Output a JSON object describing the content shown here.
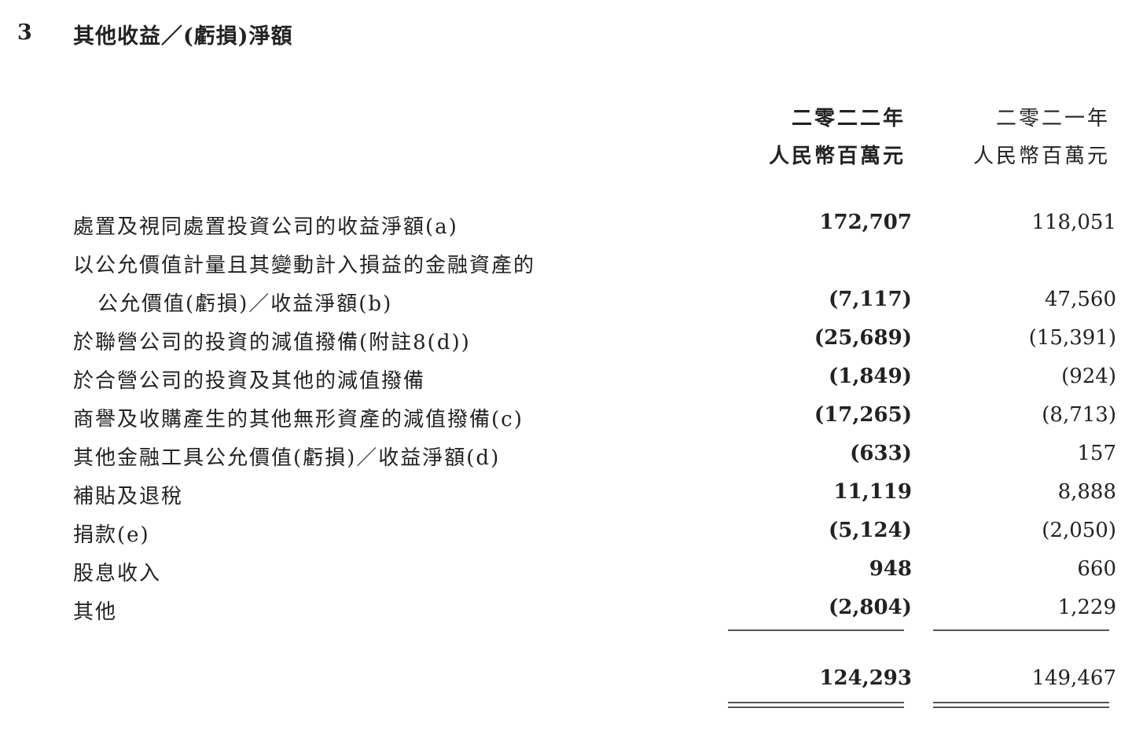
{
  "section": {
    "number": "3",
    "title": "其他收益／(虧損)淨額"
  },
  "columns": [
    {
      "year": "二零二二年",
      "unit": "人民幣百萬元"
    },
    {
      "year": "二零二一年",
      "unit": "人民幣百萬元"
    }
  ],
  "rows": [
    {
      "label": "處置及視同處置投資公司的收益淨額(a)",
      "y2022": "172,707",
      "y2021": "118,051"
    },
    {
      "label": "以公允價值計量且其變動計入損益的金融資產的",
      "y2022": "",
      "y2021": ""
    },
    {
      "label": "公允價值(虧損)／收益淨額(b)",
      "y2022": "(7,117)",
      "y2021": "47,560"
    },
    {
      "label": "於聯營公司的投資的減值撥備(附註8(d))",
      "y2022": "(25,689)",
      "y2021": "(15,391)"
    },
    {
      "label": "於合營公司的投資及其他的減值撥備",
      "y2022": "(1,849)",
      "y2021": "(924)"
    },
    {
      "label": "商譽及收購產生的其他無形資產的減值撥備(c)",
      "y2022": "(17,265)",
      "y2021": "(8,713)"
    },
    {
      "label": "其他金融工具公允價值(虧損)／收益淨額(d)",
      "y2022": "(633)",
      "y2021": "157"
    },
    {
      "label": "補貼及退稅",
      "y2022": "11,119",
      "y2021": "8,888"
    },
    {
      "label": "捐款(e)",
      "y2022": "(5,124)",
      "y2021": "(2,050)"
    },
    {
      "label": "股息收入",
      "y2022": "948",
      "y2021": "660"
    },
    {
      "label": "其他",
      "y2022": "(2,804)",
      "y2021": "1,229"
    }
  ],
  "total": {
    "y2022": "124,293",
    "y2021": "149,467"
  }
}
